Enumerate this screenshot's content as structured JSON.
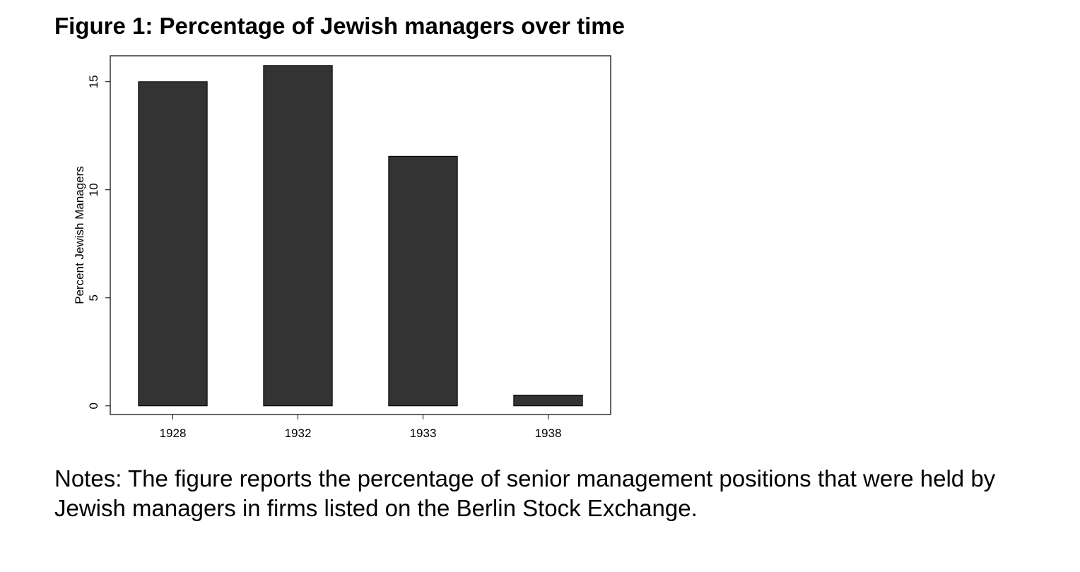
{
  "figure": {
    "title": "Figure 1: Percentage of Jewish managers over time",
    "notes": "Notes: The figure reports the percentage of senior management positions that were held by Jewish managers in firms listed on the Berlin Stock Exchange."
  },
  "chart_data": {
    "type": "bar",
    "title": "",
    "xlabel": "",
    "ylabel": "Percent Jewish Managers",
    "categories": [
      "1928",
      "1932",
      "1933",
      "1938"
    ],
    "values": [
      15.0,
      15.75,
      11.55,
      0.5
    ],
    "ylim": [
      -0.4,
      16.2
    ],
    "yticks": [
      0,
      5,
      10,
      15
    ],
    "ytick_labels": [
      "0",
      "5",
      "10",
      "15"
    ],
    "grid": false,
    "legend": "none",
    "bar_color": "#333333"
  }
}
